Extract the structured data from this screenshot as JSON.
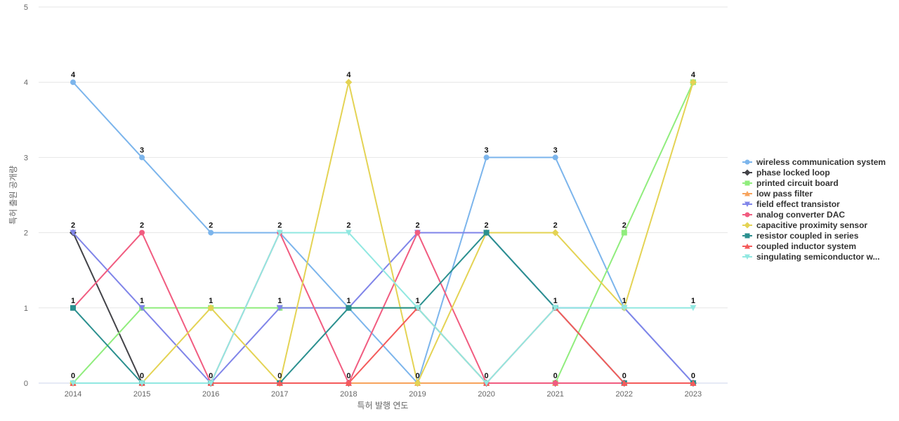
{
  "chart_data": {
    "type": "line",
    "xlabel": "특허 발행 연도",
    "ylabel": "특허 출원 공개량",
    "x": [
      "2014",
      "2015",
      "2016",
      "2017",
      "2018",
      "2019",
      "2020",
      "2021",
      "2022",
      "2023"
    ],
    "ylim": [
      0,
      5
    ],
    "yticks": [
      "0",
      "1",
      "2",
      "3",
      "4",
      "5"
    ],
    "grid": true,
    "legend_position": "right",
    "series": [
      {
        "name": "wireless communication system",
        "color": "#7cb5ec",
        "marker": "circle",
        "values": [
          4,
          3,
          2,
          2,
          1,
          0,
          3,
          3,
          1,
          0
        ]
      },
      {
        "name": "phase locked loop",
        "color": "#434348",
        "marker": "diamond",
        "values": [
          2,
          0,
          0,
          0,
          0,
          0,
          0,
          0,
          0,
          0
        ]
      },
      {
        "name": "printed circuit board",
        "color": "#90ed7d",
        "marker": "square",
        "values": [
          0,
          1,
          1,
          1,
          1,
          1,
          0,
          0,
          2,
          4
        ]
      },
      {
        "name": "low pass filter",
        "color": "#f7a35c",
        "marker": "triangle",
        "values": [
          0,
          0,
          0,
          0,
          0,
          0,
          0,
          0,
          0,
          0
        ]
      },
      {
        "name": "field effect transistor",
        "color": "#8085e9",
        "marker": "triangle-down",
        "values": [
          2,
          1,
          0,
          1,
          1,
          2,
          2,
          1,
          1,
          0
        ]
      },
      {
        "name": "analog converter DAC",
        "color": "#f15c80",
        "marker": "circle",
        "values": [
          1,
          2,
          0,
          2,
          0,
          2,
          0,
          0,
          0,
          0
        ]
      },
      {
        "name": "capacitive proximity sensor",
        "color": "#e4d354",
        "marker": "diamond",
        "values": [
          0,
          0,
          1,
          0,
          4,
          0,
          2,
          2,
          1,
          4
        ]
      },
      {
        "name": "resistor coupled in series",
        "color": "#2b908f",
        "marker": "square",
        "values": [
          1,
          0,
          0,
          0,
          1,
          1,
          2,
          1,
          0,
          0
        ]
      },
      {
        "name": "coupled inductor system",
        "color": "#f45b5b",
        "marker": "triangle",
        "values": [
          0,
          0,
          0,
          0,
          0,
          1,
          0,
          1,
          0,
          0
        ]
      },
      {
        "name": "singulating semiconductor w...",
        "color": "#91e8e1",
        "marker": "triangle-down",
        "values": [
          0,
          0,
          0,
          2,
          2,
          1,
          0,
          1,
          1,
          1
        ]
      }
    ],
    "data_labels": [
      {
        "x": "2014",
        "value": "4"
      },
      {
        "x": "2014",
        "value": "2"
      },
      {
        "x": "2014",
        "value": "1"
      },
      {
        "x": "2014",
        "value": "0"
      },
      {
        "x": "2015",
        "value": "3"
      },
      {
        "x": "2015",
        "value": "2"
      },
      {
        "x": "2015",
        "value": "1"
      },
      {
        "x": "2015",
        "value": "0"
      },
      {
        "x": "2016",
        "value": "2"
      },
      {
        "x": "2016",
        "value": "1"
      },
      {
        "x": "2016",
        "value": "0"
      },
      {
        "x": "2017",
        "value": "2"
      },
      {
        "x": "2017",
        "value": "1"
      },
      {
        "x": "2017",
        "value": "0"
      },
      {
        "x": "2018",
        "value": "4"
      },
      {
        "x": "2018",
        "value": "2"
      },
      {
        "x": "2018",
        "value": "1"
      },
      {
        "x": "2018",
        "value": "0"
      },
      {
        "x": "2019",
        "value": "2"
      },
      {
        "x": "2019",
        "value": "1"
      },
      {
        "x": "2019",
        "value": "0"
      },
      {
        "x": "2020",
        "value": "3"
      },
      {
        "x": "2020",
        "value": "2"
      },
      {
        "x": "2020",
        "value": "0"
      },
      {
        "x": "2021",
        "value": "3"
      },
      {
        "x": "2021",
        "value": "2"
      },
      {
        "x": "2021",
        "value": "1"
      },
      {
        "x": "2021",
        "value": "0"
      },
      {
        "x": "2022",
        "value": "2"
      },
      {
        "x": "2022",
        "value": "1"
      },
      {
        "x": "2022",
        "value": "0"
      },
      {
        "x": "2023",
        "value": "4"
      },
      {
        "x": "2023",
        "value": "1"
      },
      {
        "x": "2023",
        "value": "0"
      }
    ]
  }
}
